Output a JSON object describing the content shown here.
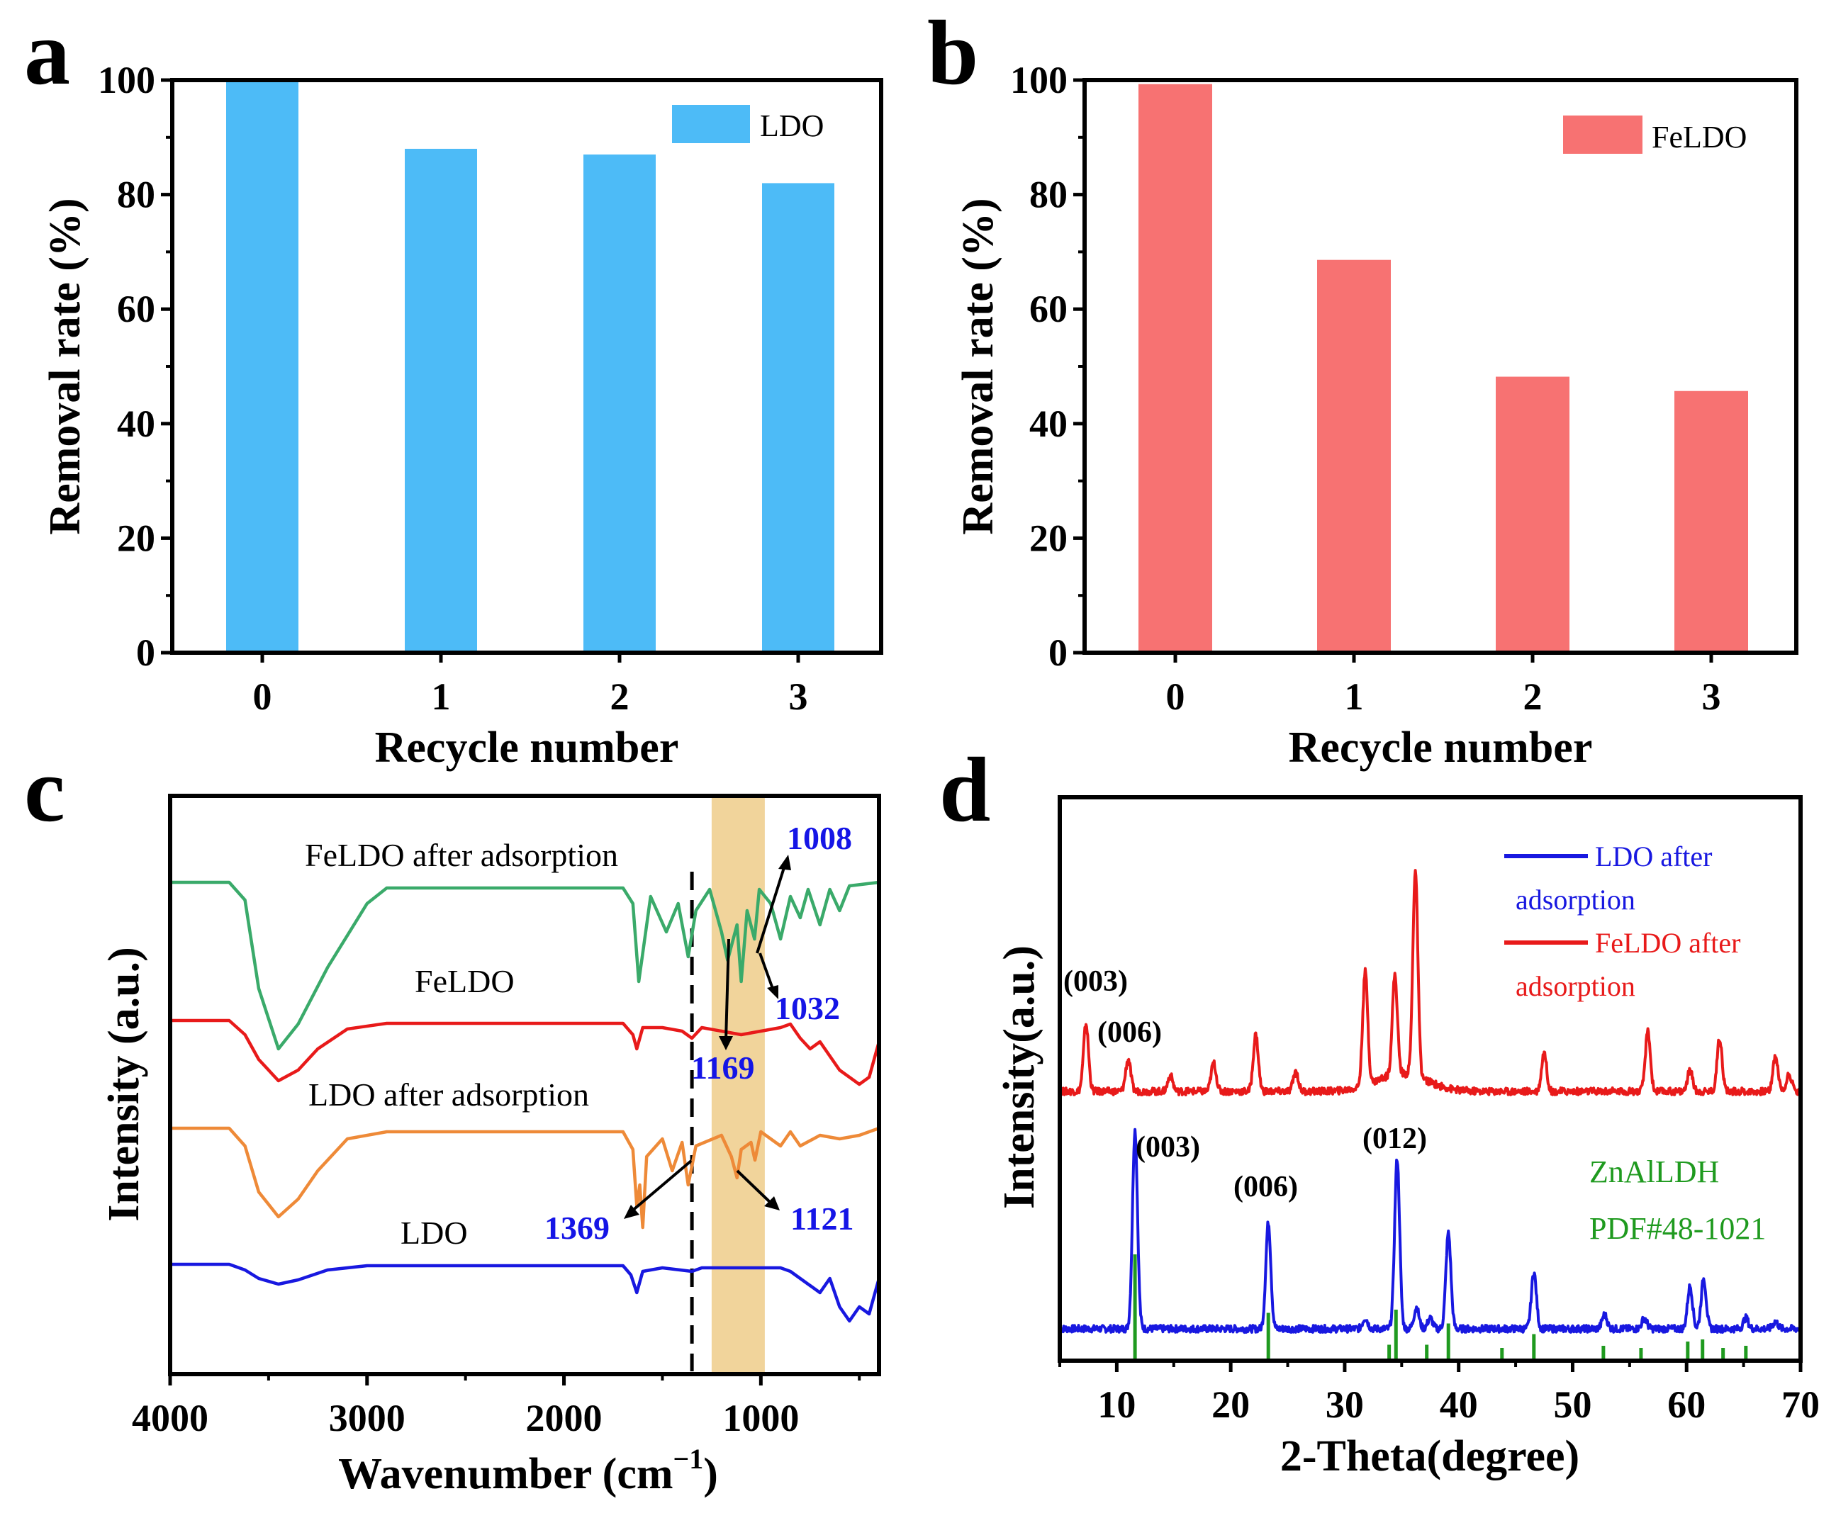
{
  "chart_data": [
    {
      "panel": "a",
      "type": "bar",
      "categories": [
        "0",
        "1",
        "2",
        "3"
      ],
      "series": [
        {
          "name": "LDO",
          "values": [
            100,
            88,
            87,
            82
          ],
          "color": "#4dbbf7"
        }
      ],
      "xlabel": "Recycle number",
      "ylabel": "Removal rate (%)",
      "ylim": [
        0,
        100
      ],
      "yticks": [
        "0",
        "20",
        "40",
        "60",
        "80",
        "100"
      ],
      "legend": "top-right"
    },
    {
      "panel": "b",
      "type": "bar",
      "categories": [
        "0",
        "1",
        "2",
        "3"
      ],
      "series": [
        {
          "name": "FeLDO",
          "values": [
            99.3,
            68.6,
            48.2,
            45.7
          ],
          "color": "#f77272"
        }
      ],
      "xlabel": "Recycle number",
      "ylabel": "Removal rate (%)",
      "ylim": [
        0,
        100
      ],
      "yticks": [
        "0",
        "20",
        "40",
        "60",
        "80",
        "100"
      ],
      "legend": "top-right"
    },
    {
      "panel": "c",
      "type": "line",
      "xlabel_main": "Wavenumber (cm",
      "xlabel_sup": "−1",
      "xlabel_end": ")",
      "ylabel": "Intensity (a.u.)",
      "xlim": [
        4000,
        400
      ],
      "xticks": [
        "4000",
        "3000",
        "2000",
        "1000"
      ],
      "highlight_band": [
        1250,
        980
      ],
      "dashed_line": 1350,
      "series": [
        {
          "name": "FeLDO after adsorption",
          "color": "#3aaa6a",
          "points": [
            [
              4000,
              0
            ],
            [
              3700,
              0
            ],
            [
              3620,
              -25
            ],
            [
              3550,
              -150
            ],
            [
              3450,
              -235
            ],
            [
              3350,
              -200
            ],
            [
              3200,
              -120
            ],
            [
              3000,
              -30
            ],
            [
              2900,
              -8
            ],
            [
              1700,
              -8
            ],
            [
              1650,
              -30
            ],
            [
              1620,
              -140
            ],
            [
              1600,
              -100
            ],
            [
              1560,
              -20
            ],
            [
              1480,
              -70
            ],
            [
              1420,
              -30
            ],
            [
              1369,
              -105
            ],
            [
              1330,
              -40
            ],
            [
              1260,
              -10
            ],
            [
              1200,
              -70
            ],
            [
              1169,
              -110
            ],
            [
              1121,
              -60
            ],
            [
              1100,
              -140
            ],
            [
              1070,
              -40
            ],
            [
              1032,
              -80
            ],
            [
              1008,
              -10
            ],
            [
              950,
              -30
            ],
            [
              900,
              -80
            ],
            [
              850,
              -20
            ],
            [
              800,
              -50
            ],
            [
              760,
              -10
            ],
            [
              700,
              -60
            ],
            [
              650,
              -10
            ],
            [
              600,
              -40
            ],
            [
              550,
              -5
            ],
            [
              400,
              0
            ]
          ]
        },
        {
          "name": "FeLDO",
          "color": "#e81a1a",
          "points": [
            [
              4000,
              0
            ],
            [
              3700,
              0
            ],
            [
              3620,
              -20
            ],
            [
              3550,
              -55
            ],
            [
              3450,
              -85
            ],
            [
              3350,
              -70
            ],
            [
              3250,
              -40
            ],
            [
              3100,
              -12
            ],
            [
              2900,
              -4
            ],
            [
              1700,
              -4
            ],
            [
              1650,
              -20
            ],
            [
              1630,
              -40
            ],
            [
              1600,
              -10
            ],
            [
              1500,
              -10
            ],
            [
              1400,
              -15
            ],
            [
              1350,
              -25
            ],
            [
              1300,
              -10
            ],
            [
              1200,
              -15
            ],
            [
              1100,
              -20
            ],
            [
              1000,
              -15
            ],
            [
              900,
              -10
            ],
            [
              850,
              -5
            ],
            [
              800,
              -25
            ],
            [
              750,
              -40
            ],
            [
              700,
              -30
            ],
            [
              600,
              -70
            ],
            [
              500,
              -90
            ],
            [
              450,
              -80
            ],
            [
              400,
              -30
            ]
          ]
        },
        {
          "name": "LDO after adsorption",
          "color": "#ee8a38",
          "points": [
            [
              4000,
              0
            ],
            [
              3700,
              0
            ],
            [
              3620,
              -25
            ],
            [
              3550,
              -90
            ],
            [
              3450,
              -125
            ],
            [
              3350,
              -100
            ],
            [
              3250,
              -60
            ],
            [
              3100,
              -15
            ],
            [
              2900,
              -5
            ],
            [
              1700,
              -5
            ],
            [
              1650,
              -30
            ],
            [
              1630,
              -110
            ],
            [
              1615,
              -80
            ],
            [
              1600,
              -140
            ],
            [
              1580,
              -40
            ],
            [
              1500,
              -15
            ],
            [
              1450,
              -60
            ],
            [
              1400,
              -20
            ],
            [
              1369,
              -80
            ],
            [
              1330,
              -25
            ],
            [
              1200,
              -10
            ],
            [
              1150,
              -40
            ],
            [
              1121,
              -70
            ],
            [
              1100,
              -30
            ],
            [
              1050,
              -20
            ],
            [
              1030,
              -45
            ],
            [
              1000,
              -5
            ],
            [
              900,
              -25
            ],
            [
              850,
              -5
            ],
            [
              800,
              -25
            ],
            [
              700,
              -10
            ],
            [
              600,
              -15
            ],
            [
              500,
              -10
            ],
            [
              400,
              0
            ]
          ]
        },
        {
          "name": "LDO",
          "color": "#1818e0",
          "points": [
            [
              4000,
              0
            ],
            [
              3700,
              0
            ],
            [
              3620,
              -8
            ],
            [
              3550,
              -20
            ],
            [
              3450,
              -28
            ],
            [
              3350,
              -22
            ],
            [
              3200,
              -8
            ],
            [
              3000,
              -2
            ],
            [
              1700,
              -2
            ],
            [
              1660,
              -15
            ],
            [
              1630,
              -40
            ],
            [
              1600,
              -10
            ],
            [
              1500,
              -5
            ],
            [
              1350,
              -10
            ],
            [
              1300,
              -5
            ],
            [
              1100,
              -5
            ],
            [
              1000,
              -5
            ],
            [
              900,
              -5
            ],
            [
              850,
              -10
            ],
            [
              750,
              -30
            ],
            [
              700,
              -40
            ],
            [
              650,
              -20
            ],
            [
              600,
              -60
            ],
            [
              550,
              -80
            ],
            [
              500,
              -60
            ],
            [
              450,
              -70
            ],
            [
              420,
              -40
            ],
            [
              400,
              -20
            ]
          ]
        }
      ],
      "annotations": [
        "1008",
        "1032",
        "1169",
        "1369",
        "1121"
      ]
    },
    {
      "panel": "d",
      "type": "line",
      "xlabel": "2-Theta(degree)",
      "ylabel": "Intensity(a.u.)",
      "xlim": [
        5,
        70
      ],
      "xticks": [
        "10",
        "20",
        "30",
        "40",
        "50",
        "60",
        "70"
      ],
      "series": [
        {
          "name": "LDO after adsorption",
          "color": "#1818e0",
          "peaks": [
            [
              11.6,
              280
            ],
            [
              23.3,
              150
            ],
            [
              31.8,
              15
            ],
            [
              34.6,
              240
            ],
            [
              36.3,
              30
            ],
            [
              37.5,
              15
            ],
            [
              39.1,
              135
            ],
            [
              46.6,
              80
            ],
            [
              52.8,
              20
            ],
            [
              56.3,
              15
            ],
            [
              60.3,
              60
            ],
            [
              61.5,
              70
            ],
            [
              65.2,
              15
            ],
            [
              67.8,
              10
            ]
          ]
        },
        {
          "name": "FeLDO after adsorption",
          "color": "#e81a1a",
          "peaks": [
            [
              7.3,
              95
            ],
            [
              11.0,
              45
            ],
            [
              14.7,
              22
            ],
            [
              18.5,
              40
            ],
            [
              22.2,
              80
            ],
            [
              25.7,
              28
            ],
            [
              31.8,
              160
            ],
            [
              34.4,
              140
            ],
            [
              36.2,
              290
            ],
            [
              47.5,
              55
            ],
            [
              56.6,
              85
            ],
            [
              60.3,
              30
            ],
            [
              62.9,
              75
            ],
            [
              67.8,
              50
            ],
            [
              69.0,
              25
            ]
          ]
        }
      ],
      "reference": {
        "name_line1": "ZnAlLDH",
        "name_line2": "PDF#48-1021",
        "color": "#1f9a1f",
        "sticks": [
          [
            11.6,
            100
          ],
          [
            23.3,
            45
          ],
          [
            33.9,
            15
          ],
          [
            34.5,
            48
          ],
          [
            37.2,
            15
          ],
          [
            39.1,
            35
          ],
          [
            43.8,
            12
          ],
          [
            46.6,
            25
          ],
          [
            52.7,
            14
          ],
          [
            56.0,
            12
          ],
          [
            60.1,
            18
          ],
          [
            61.4,
            20
          ],
          [
            63.2,
            12
          ],
          [
            65.2,
            14
          ]
        ]
      },
      "legend_lines": [
        "LDO after",
        "adsorption",
        "FeLDO after",
        "adsorption"
      ],
      "annotations": [
        "(003)",
        "(006)",
        "(003)",
        "(006)",
        "(012)"
      ]
    }
  ],
  "panel_letters": [
    "a",
    "b",
    "c",
    "d"
  ]
}
